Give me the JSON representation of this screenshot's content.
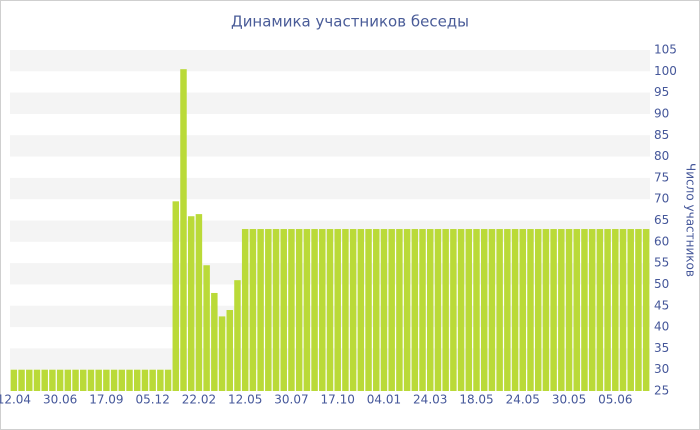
{
  "chart_data": {
    "type": "bar",
    "title": "Динамика участников беседы",
    "y_label": "Число участников",
    "categories": [
      "12.04",
      null,
      null,
      null,
      null,
      null,
      "30.06",
      null,
      null,
      null,
      null,
      null,
      "17.09",
      null,
      null,
      null,
      null,
      null,
      "05.12",
      null,
      null,
      null,
      null,
      null,
      "22.02",
      null,
      null,
      null,
      null,
      null,
      "12.05",
      null,
      null,
      null,
      null,
      null,
      "30.07",
      null,
      null,
      null,
      null,
      null,
      "17.10",
      null,
      null,
      null,
      null,
      null,
      "04.01",
      null,
      null,
      null,
      null,
      null,
      "24.03",
      null,
      null,
      null,
      null,
      null,
      "18.05",
      null,
      null,
      null,
      null,
      null,
      "24.05",
      null,
      null,
      null,
      null,
      null,
      "30.05",
      null,
      null,
      null,
      null,
      null,
      "05.06",
      null,
      null,
      null,
      null
    ],
    "values": [
      30,
      30,
      30,
      30,
      30,
      30,
      30,
      30,
      30,
      30,
      30,
      30,
      30,
      30,
      30,
      30,
      30,
      30,
      30,
      30,
      30,
      69.5,
      100.5,
      66,
      66.5,
      54.5,
      48,
      42.5,
      44,
      51,
      63,
      63,
      63,
      63,
      63,
      63,
      63,
      63,
      63,
      63,
      63,
      63,
      63,
      63,
      63,
      63,
      63,
      63,
      63,
      63,
      63,
      63,
      63,
      63,
      63,
      63,
      63,
      63,
      63,
      63,
      63,
      63,
      63,
      63,
      63,
      63,
      63,
      63,
      63,
      63,
      63,
      63,
      63,
      63,
      63,
      63,
      63,
      63,
      63,
      63,
      63,
      63,
      63
    ],
    "color": "#bada38",
    "ylim": [
      25,
      105
    ],
    "yticks": [
      25,
      30,
      35,
      40,
      45,
      50,
      55,
      60,
      65,
      70,
      75,
      80,
      85,
      90,
      95,
      100,
      105
    ],
    "grid": true,
    "y_axis_side": "right"
  }
}
